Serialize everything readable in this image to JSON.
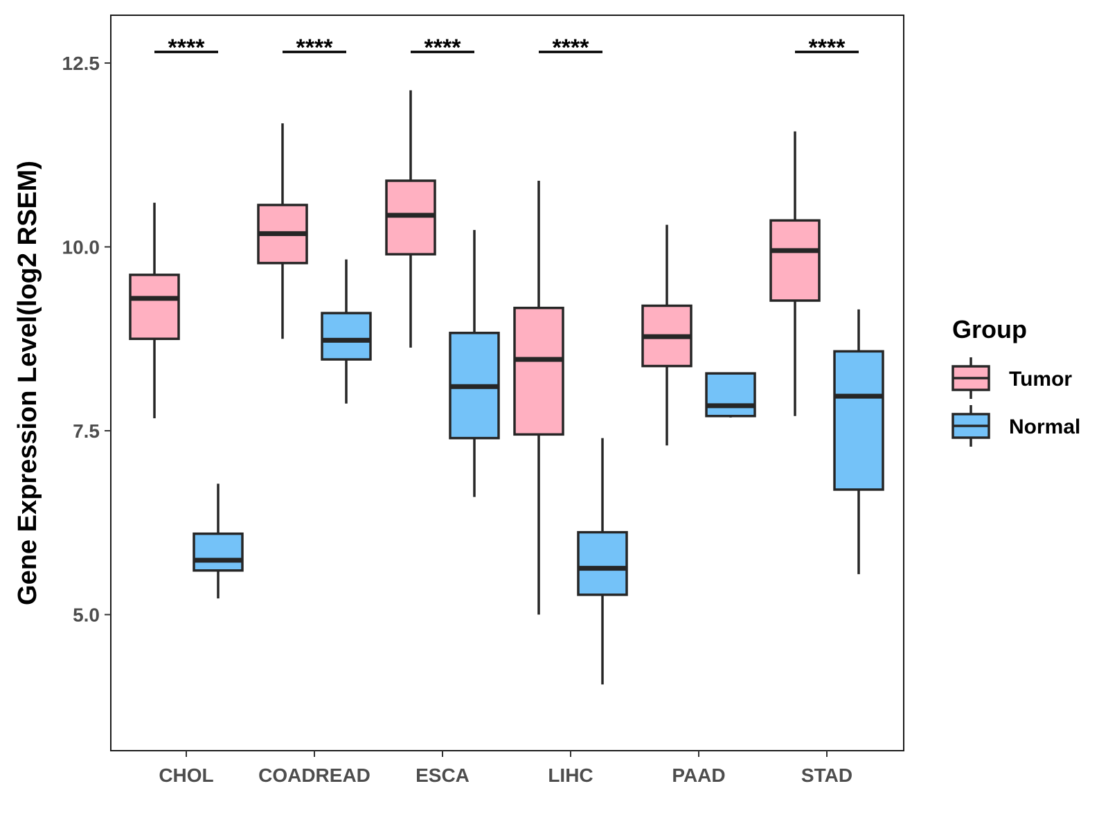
{
  "chart_data": {
    "type": "boxplot",
    "title": "",
    "xlabel": "",
    "ylabel": "Gene Expression Level(log2 RSEM)",
    "ylim": [
      3.15,
      13.15
    ],
    "yticks": [
      5.0,
      7.5,
      10.0,
      12.5
    ],
    "ytick_labels": [
      "5.0",
      "7.5",
      "10.0",
      "12.5"
    ],
    "grid": false,
    "legend": {
      "title": "Group",
      "position": "right"
    },
    "categories": [
      "CHOL",
      "COADREAD",
      "ESCA",
      "LIHC",
      "PAAD",
      "STAD"
    ],
    "series": [
      {
        "name": "Tumor",
        "color": "#FFB0C1",
        "boxes": [
          {
            "whisker_low": 7.67,
            "q1": 8.75,
            "median": 9.3,
            "q3": 9.62,
            "whisker_high": 10.6
          },
          {
            "whisker_low": 8.75,
            "q1": 9.78,
            "median": 10.18,
            "q3": 10.57,
            "whisker_high": 11.68
          },
          {
            "whisker_low": 8.63,
            "q1": 9.9,
            "median": 10.43,
            "q3": 10.9,
            "whisker_high": 12.13
          },
          {
            "whisker_low": 5.0,
            "q1": 7.45,
            "median": 8.47,
            "q3": 9.17,
            "whisker_high": 10.9
          },
          {
            "whisker_low": 7.3,
            "q1": 8.38,
            "median": 8.78,
            "q3": 9.2,
            "whisker_high": 10.3
          },
          {
            "whisker_low": 7.7,
            "q1": 9.27,
            "median": 9.95,
            "q3": 10.36,
            "whisker_high": 11.57
          }
        ]
      },
      {
        "name": "Normal",
        "color": "#74C2F8",
        "boxes": [
          {
            "whisker_low": 5.22,
            "q1": 5.6,
            "median": 5.74,
            "q3": 6.1,
            "whisker_high": 6.78
          },
          {
            "whisker_low": 7.87,
            "q1": 8.47,
            "median": 8.73,
            "q3": 9.1,
            "whisker_high": 9.83
          },
          {
            "whisker_low": 6.6,
            "q1": 7.4,
            "median": 8.1,
            "q3": 8.83,
            "whisker_high": 10.23
          },
          {
            "whisker_low": 4.05,
            "q1": 5.27,
            "median": 5.63,
            "q3": 6.12,
            "whisker_high": 7.4
          },
          {
            "whisker_low": 7.68,
            "q1": 7.7,
            "median": 7.84,
            "q3": 8.28,
            "whisker_high": 8.28
          },
          {
            "whisker_low": 5.55,
            "q1": 6.7,
            "median": 7.97,
            "q3": 8.58,
            "whisker_high": 9.15
          }
        ]
      }
    ],
    "significance": [
      "****",
      "****",
      "****",
      "****",
      "",
      "****"
    ]
  }
}
